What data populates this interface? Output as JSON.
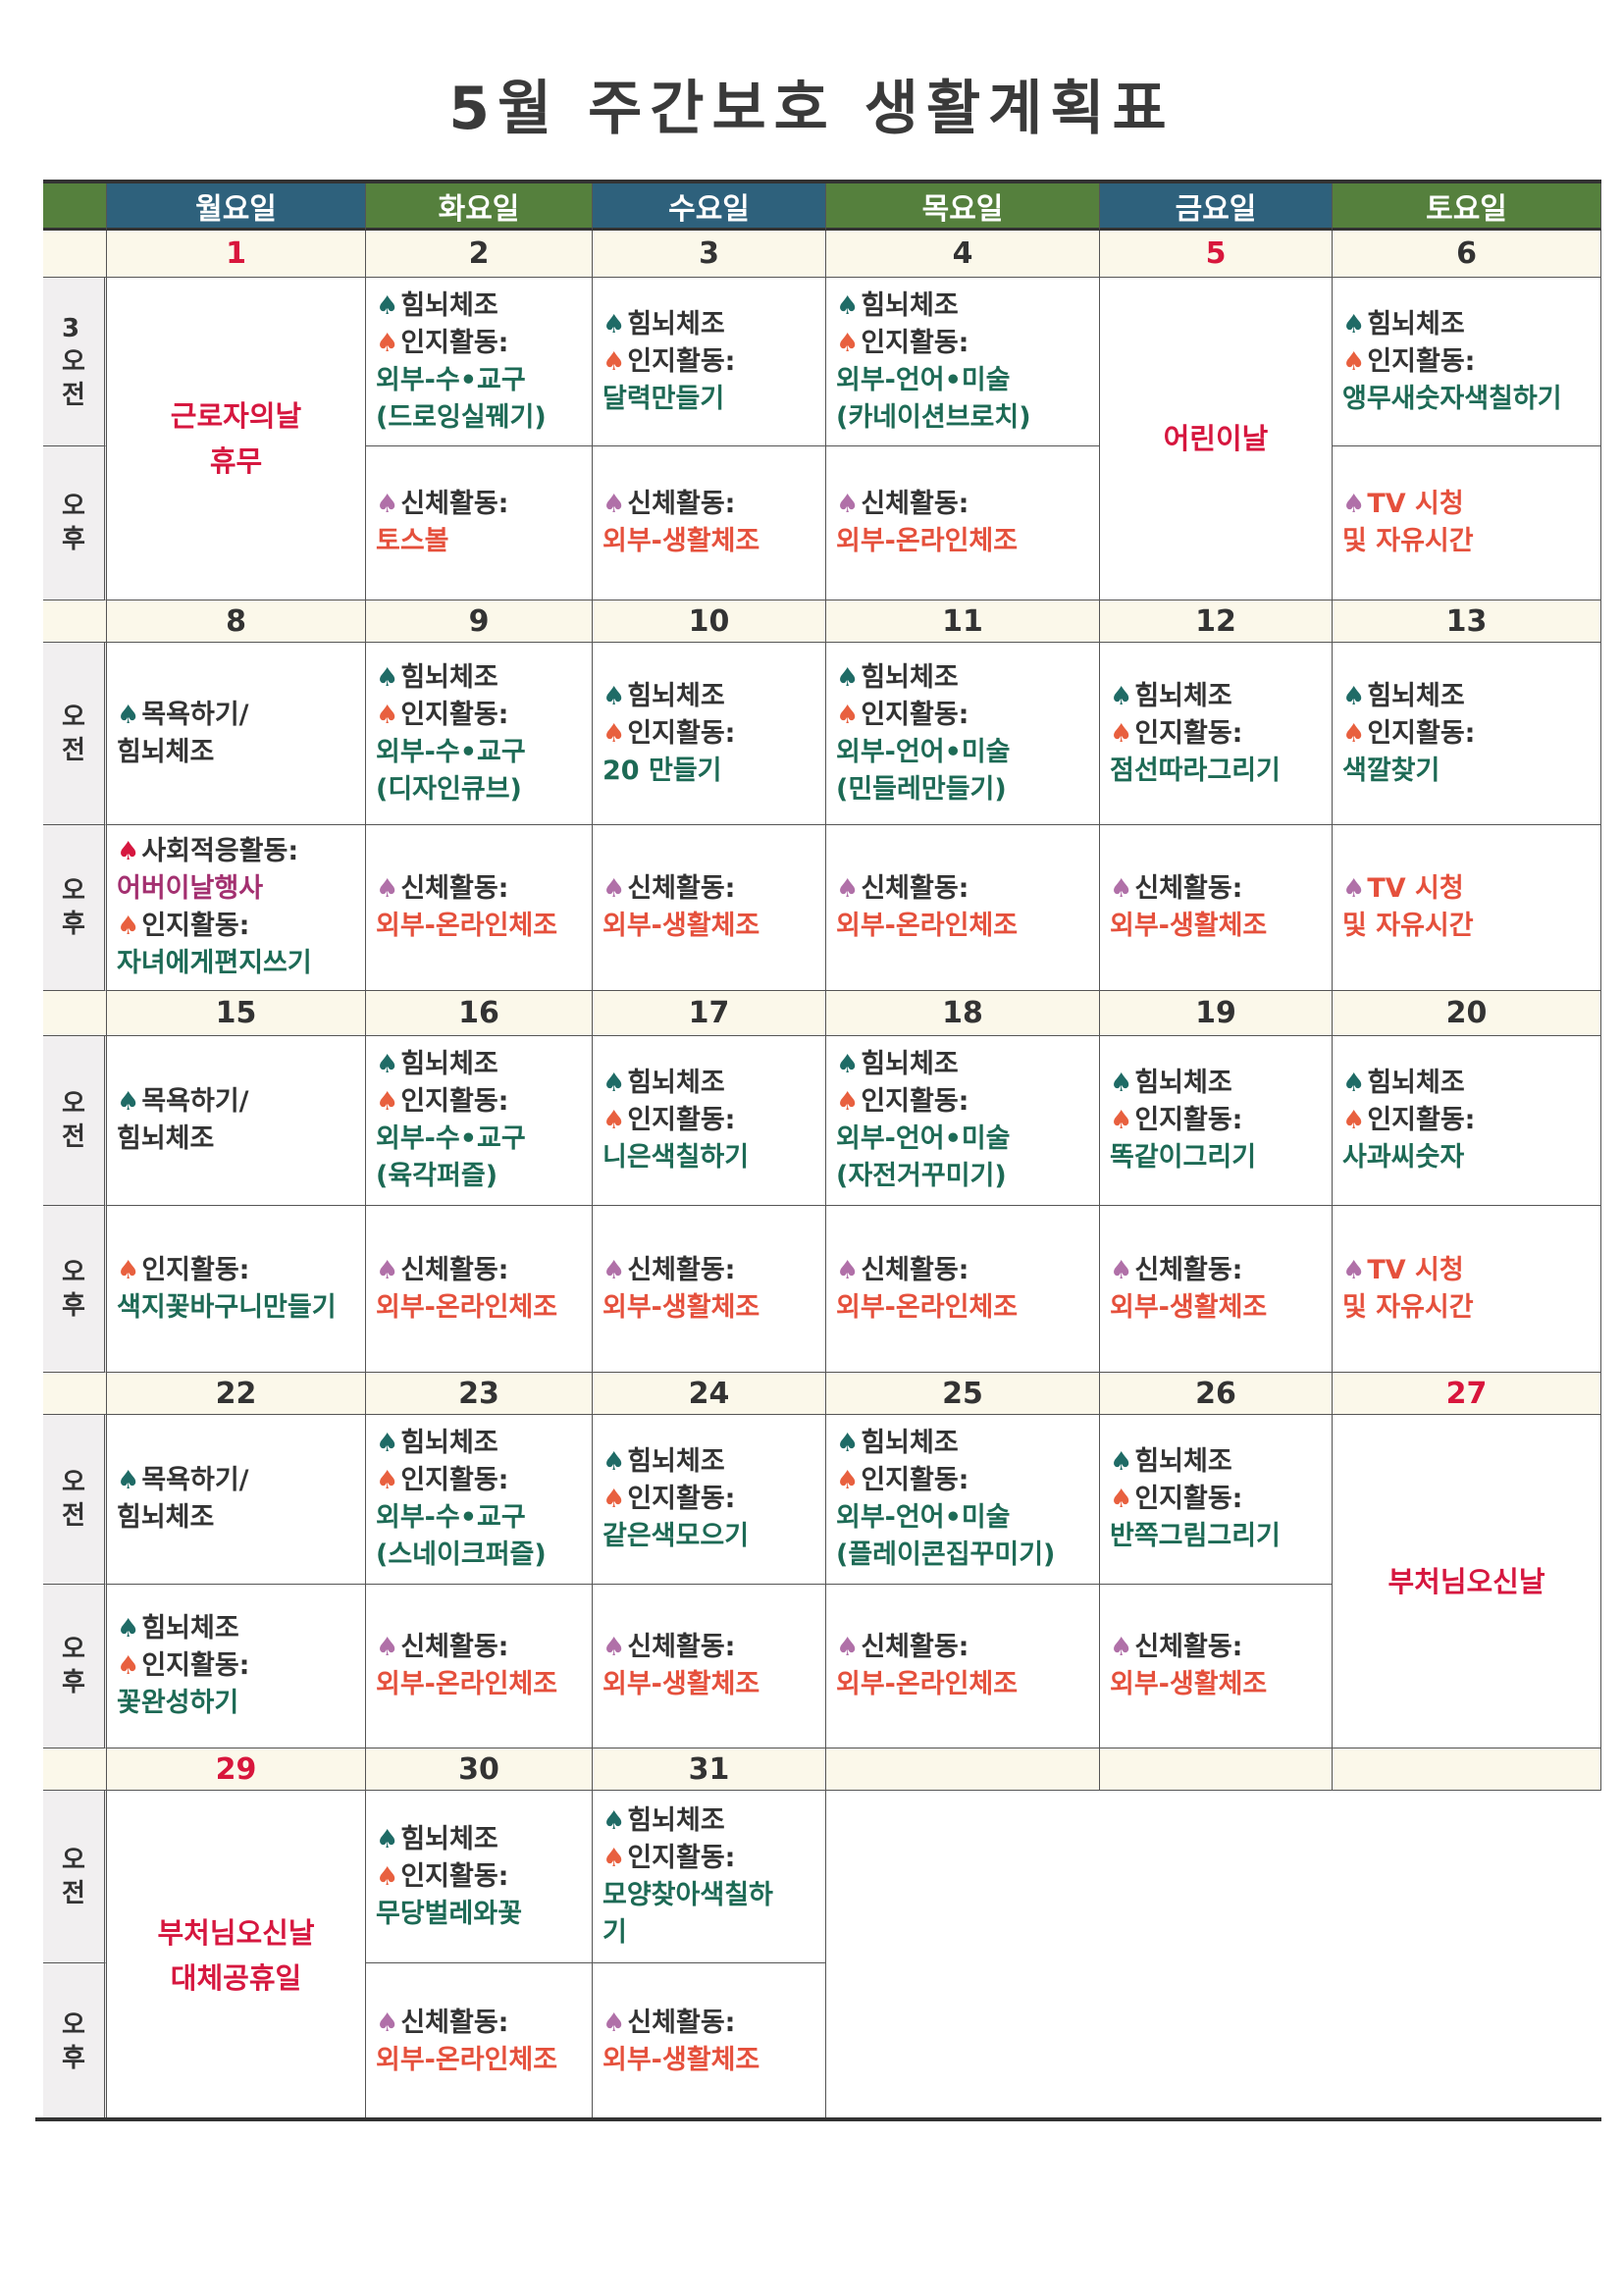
{
  "title": "5월 주간보호 생활계획표",
  "colors": {
    "header_green": "#55803d",
    "header_blue": "#2e617c",
    "holiday_red": "#d6173f",
    "activity_red": "#e5503c",
    "content_green": "#1d6a55",
    "spade_teal": "#1f6b66",
    "spade_orange": "#e8603f",
    "spade_purple": "#b070a8",
    "spade_crimson": "#d6173f"
  },
  "weekdays": [
    "월요일",
    "화요일",
    "수요일",
    "목요일",
    "금요일",
    "토요일"
  ],
  "labels": {
    "am_first": "3\n오\n전",
    "am": "오\n전",
    "pm": "오\n후"
  },
  "weeks": [
    {
      "days": [
        {
          "num": "1",
          "red": true,
          "holiday": [
            "근로자의날",
            "휴무"
          ]
        },
        {
          "num": "2",
          "am": [
            [
              "teal",
              "힘뇌체조",
              "dark"
            ],
            [
              "orange",
              "인지활동:",
              "dark"
            ],
            [
              "",
              "외부-수•교구",
              "gr"
            ],
            [
              "",
              "(드로잉실꿰기)",
              "gr"
            ]
          ],
          "pm": [
            [
              "purple",
              "신체활동:",
              "dark"
            ],
            [
              "",
              "토스볼",
              "rd"
            ]
          ]
        },
        {
          "num": "3",
          "am": [
            [
              "teal",
              "힘뇌체조",
              "dark"
            ],
            [
              "orange",
              "인지활동:",
              "dark"
            ],
            [
              "",
              "달력만들기",
              "gr"
            ]
          ],
          "pm": [
            [
              "purple",
              "신체활동:",
              "dark"
            ],
            [
              "",
              "외부-생활체조",
              "rd"
            ]
          ]
        },
        {
          "num": "4",
          "am": [
            [
              "teal",
              "힘뇌체조",
              "dark"
            ],
            [
              "orange",
              "인지활동:",
              "dark"
            ],
            [
              "",
              "외부-언어•미술",
              "gr"
            ],
            [
              "",
              "(카네이션브로치)",
              "gr"
            ]
          ],
          "pm": [
            [
              "purple",
              "신체활동:",
              "dark"
            ],
            [
              "",
              "외부-온라인체조",
              "rd"
            ]
          ]
        },
        {
          "num": "5",
          "red": true,
          "holiday": [
            "어린이날"
          ]
        },
        {
          "num": "6",
          "am": [
            [
              "teal",
              "힘뇌체조",
              "dark"
            ],
            [
              "orange",
              "인지활동:",
              "dark"
            ],
            [
              "",
              "앵무새숫자색칠하기",
              "gr"
            ]
          ],
          "pm": [
            [
              "purple",
              "TV  시청",
              "rd"
            ],
            [
              "",
              "및 자유시간",
              "rd"
            ]
          ]
        }
      ]
    },
    {
      "days": [
        {
          "num": "8",
          "am": [
            [
              "teal",
              "목욕하기/",
              "dark"
            ],
            [
              "",
              "힘뇌체조",
              "dark"
            ]
          ],
          "pm": [
            [
              "crimson",
              "사회적응활동:",
              "dark"
            ],
            [
              "",
              "어버이날행사",
              "pu"
            ],
            [
              "orange",
              "인지활동:",
              "dark"
            ],
            [
              "",
              "자녀에게편지쓰기",
              "gr"
            ]
          ]
        },
        {
          "num": "9",
          "am": [
            [
              "teal",
              "힘뇌체조",
              "dark"
            ],
            [
              "orange",
              "인지활동:",
              "dark"
            ],
            [
              "",
              "외부-수•교구",
              "gr"
            ],
            [
              "",
              "(디자인큐브)",
              "gr"
            ]
          ],
          "pm": [
            [
              "purple",
              "신체활동:",
              "dark"
            ],
            [
              "",
              "외부-온라인체조",
              "rd"
            ]
          ]
        },
        {
          "num": "10",
          "am": [
            [
              "teal",
              "힘뇌체조",
              "dark"
            ],
            [
              "orange",
              "인지활동:",
              "dark"
            ],
            [
              "",
              "20 만들기",
              "gr"
            ]
          ],
          "pm": [
            [
              "purple",
              "신체활동:",
              "dark"
            ],
            [
              "",
              "외부-생활체조",
              "rd"
            ]
          ]
        },
        {
          "num": "11",
          "am": [
            [
              "teal",
              "힘뇌체조",
              "dark"
            ],
            [
              "orange",
              "인지활동:",
              "dark"
            ],
            [
              "",
              "외부-언어•미술",
              "gr"
            ],
            [
              "",
              "(민들레만들기)",
              "gr"
            ]
          ],
          "pm": [
            [
              "purple",
              "신체활동:",
              "dark"
            ],
            [
              "",
              "외부-온라인체조",
              "rd"
            ]
          ]
        },
        {
          "num": "12",
          "am": [
            [
              "teal",
              "힘뇌체조",
              "dark"
            ],
            [
              "orange",
              "인지활동:",
              "dark"
            ],
            [
              "",
              "점선따라그리기",
              "gr"
            ]
          ],
          "pm": [
            [
              "purple",
              "신체활동:",
              "dark"
            ],
            [
              "",
              "외부-생활체조",
              "rd"
            ]
          ]
        },
        {
          "num": "13",
          "am": [
            [
              "teal",
              "힘뇌체조",
              "dark"
            ],
            [
              "orange",
              "인지활동:",
              "dark"
            ],
            [
              "",
              "색깔찾기",
              "gr"
            ]
          ],
          "pm": [
            [
              "purple",
              "TV  시청",
              "rd"
            ],
            [
              "",
              "및 자유시간",
              "rd"
            ]
          ]
        }
      ]
    },
    {
      "days": [
        {
          "num": "15",
          "am": [
            [
              "teal",
              "목욕하기/",
              "dark"
            ],
            [
              "",
              "힘뇌체조",
              "dark"
            ]
          ],
          "pm": [
            [
              "orange",
              "인지활동:",
              "dark"
            ],
            [
              "",
              "색지꽃바구니만들기",
              "gr"
            ]
          ]
        },
        {
          "num": "16",
          "am": [
            [
              "teal",
              "힘뇌체조",
              "dark"
            ],
            [
              "orange",
              "인지활동:",
              "dark"
            ],
            [
              "",
              "외부-수•교구",
              "gr"
            ],
            [
              "",
              "(육각퍼즐)",
              "gr"
            ]
          ],
          "pm": [
            [
              "purple",
              "신체활동:",
              "dark"
            ],
            [
              "",
              "외부-온라인체조",
              "rd"
            ]
          ]
        },
        {
          "num": "17",
          "am": [
            [
              "teal",
              "힘뇌체조",
              "dark"
            ],
            [
              "orange",
              "인지활동:",
              "dark"
            ],
            [
              "",
              "니은색칠하기",
              "gr"
            ]
          ],
          "pm": [
            [
              "purple",
              "신체활동:",
              "dark"
            ],
            [
              "",
              "외부-생활체조",
              "rd"
            ]
          ]
        },
        {
          "num": "18",
          "am": [
            [
              "teal",
              "힘뇌체조",
              "dark"
            ],
            [
              "orange",
              "인지활동:",
              "dark"
            ],
            [
              "",
              "외부-언어•미술",
              "gr"
            ],
            [
              "",
              "(자전거꾸미기)",
              "gr"
            ]
          ],
          "pm": [
            [
              "purple",
              "신체활동:",
              "dark"
            ],
            [
              "",
              "외부-온라인체조",
              "rd"
            ]
          ]
        },
        {
          "num": "19",
          "am": [
            [
              "teal",
              "힘뇌체조",
              "dark"
            ],
            [
              "orange",
              "인지활동:",
              "dark"
            ],
            [
              "",
              "똑같이그리기",
              "gr"
            ]
          ],
          "pm": [
            [
              "purple",
              "신체활동:",
              "dark"
            ],
            [
              "",
              "외부-생활체조",
              "rd"
            ]
          ]
        },
        {
          "num": "20",
          "am": [
            [
              "teal",
              "힘뇌체조",
              "dark"
            ],
            [
              "orange",
              "인지활동:",
              "dark"
            ],
            [
              "",
              "사과씨숫자",
              "gr"
            ]
          ],
          "pm": [
            [
              "purple",
              "TV  시청",
              "rd"
            ],
            [
              "",
              "및 자유시간",
              "rd"
            ]
          ]
        }
      ]
    },
    {
      "days": [
        {
          "num": "22",
          "am": [
            [
              "teal",
              "목욕하기/",
              "dark"
            ],
            [
              "",
              "힘뇌체조",
              "dark"
            ]
          ],
          "pm": [
            [
              "teal",
              "힘뇌체조",
              "dark"
            ],
            [
              "orange",
              "인지활동:",
              "dark"
            ],
            [
              "",
              "꽃완성하기",
              "gr"
            ]
          ]
        },
        {
          "num": "23",
          "am": [
            [
              "teal",
              "힘뇌체조",
              "dark"
            ],
            [
              "orange",
              "인지활동:",
              "dark"
            ],
            [
              "",
              "외부-수•교구",
              "gr"
            ],
            [
              "",
              "(스네이크퍼즐)",
              "gr"
            ]
          ],
          "pm": [
            [
              "purple",
              "신체활동:",
              "dark"
            ],
            [
              "",
              "외부-온라인체조",
              "rd"
            ]
          ]
        },
        {
          "num": "24",
          "am": [
            [
              "teal",
              "힘뇌체조",
              "dark"
            ],
            [
              "orange",
              "인지활동:",
              "dark"
            ],
            [
              "",
              "같은색모으기",
              "gr"
            ]
          ],
          "pm": [
            [
              "purple",
              "신체활동:",
              "dark"
            ],
            [
              "",
              "외부-생활체조",
              "rd"
            ]
          ]
        },
        {
          "num": "25",
          "am": [
            [
              "teal",
              "힘뇌체조",
              "dark"
            ],
            [
              "orange",
              "인지활동:",
              "dark"
            ],
            [
              "",
              "외부-언어•미술",
              "gr"
            ],
            [
              "",
              "(플레이콘집꾸미기)",
              "gr"
            ]
          ],
          "pm": [
            [
              "purple",
              "신체활동:",
              "dark"
            ],
            [
              "",
              "외부-온라인체조",
              "rd"
            ]
          ]
        },
        {
          "num": "26",
          "am": [
            [
              "teal",
              "힘뇌체조",
              "dark"
            ],
            [
              "orange",
              "인지활동:",
              "dark"
            ],
            [
              "",
              "반쪽그림그리기",
              "gr"
            ]
          ],
          "pm": [
            [
              "purple",
              "신체활동:",
              "dark"
            ],
            [
              "",
              "외부-생활체조",
              "rd"
            ]
          ]
        },
        {
          "num": "27",
          "red": true,
          "holiday": [
            "부처님오신날"
          ]
        }
      ]
    },
    {
      "days": [
        {
          "num": "29",
          "red": true,
          "holiday": [
            "부처님오신날",
            "대체공휴일"
          ]
        },
        {
          "num": "30",
          "am": [
            [
              "teal",
              "힘뇌체조",
              "dark"
            ],
            [
              "orange",
              "인지활동:",
              "dark"
            ],
            [
              "",
              "무당벌레와꽃",
              "gr"
            ]
          ],
          "pm": [
            [
              "purple",
              "신체활동:",
              "dark"
            ],
            [
              "",
              "외부-온라인체조",
              "rd"
            ]
          ]
        },
        {
          "num": "31",
          "am": [
            [
              "teal",
              "힘뇌체조",
              "dark"
            ],
            [
              "orange",
              "인지활동:",
              "dark"
            ],
            [
              "",
              "모양찾아색칠하",
              "gr"
            ],
            [
              "",
              "기",
              "gr"
            ]
          ],
          "pm": [
            [
              "purple",
              "신체활동:",
              "dark"
            ],
            [
              "",
              "외부-생활체조",
              "rd"
            ]
          ]
        },
        {
          "num": "",
          "empty": true
        },
        {
          "num": "",
          "empty": true
        },
        {
          "num": "",
          "empty": true
        }
      ]
    }
  ]
}
